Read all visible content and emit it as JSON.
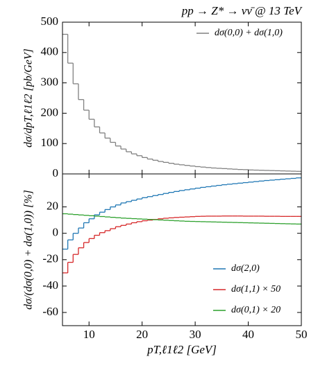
{
  "chart_data": [
    {
      "type": "histogram",
      "title": "pp → Z* → νν̄ @ 13 TeV",
      "ylabel": "dσ/dpT,ℓ1ℓ2 [pb/GeV]",
      "legend": "upper right",
      "xlim": [
        5,
        50
      ],
      "xticks": [
        10,
        20,
        30,
        40,
        50
      ],
      "ylim": [
        0,
        500
      ],
      "yticks": [
        0,
        100,
        200,
        300,
        400,
        500
      ],
      "bins": [
        5,
        6,
        7,
        8,
        9,
        10,
        11,
        12,
        13,
        14,
        15,
        16,
        17,
        18,
        19,
        20,
        21,
        22,
        23,
        24,
        25,
        26,
        27,
        28,
        29,
        30,
        31,
        32,
        33,
        34,
        35,
        36,
        37,
        38,
        39,
        40,
        41,
        42,
        43,
        44,
        45,
        46,
        47,
        48,
        49,
        50
      ],
      "series": [
        {
          "name": "dσ(0,0) + dσ(1,0)",
          "color": "#808080",
          "values": [
            460,
            365,
            297,
            245,
            210,
            180,
            155,
            135,
            118,
            104,
            92,
            82,
            73,
            66,
            60,
            54,
            49,
            45,
            41,
            38,
            35,
            32,
            30,
            28,
            26,
            24,
            22.5,
            21,
            19.5,
            18.5,
            17.5,
            16.5,
            15.5,
            14.5,
            14,
            13,
            12.5,
            12,
            11.5,
            11,
            10.5,
            10,
            9.5,
            9,
            8.5
          ]
        }
      ]
    },
    {
      "type": "histogram",
      "xlabel": "pT,ℓ1ℓ2 [GeV]",
      "ylabel": "dσ/(dσ(0,0) + dσ(1,0)) [%]",
      "legend": "lower right",
      "xlim": [
        5,
        50
      ],
      "xticks": [
        10,
        20,
        30,
        40,
        50
      ],
      "ylim": [
        -70,
        45
      ],
      "yticks": [
        -60,
        -40,
        -20,
        0,
        20
      ],
      "bins": [
        5,
        6,
        7,
        8,
        9,
        10,
        11,
        12,
        13,
        14,
        15,
        16,
        17,
        18,
        19,
        20,
        21,
        22,
        23,
        24,
        25,
        26,
        27,
        28,
        29,
        30,
        31,
        32,
        33,
        34,
        35,
        36,
        37,
        38,
        39,
        40,
        41,
        42,
        43,
        44,
        45,
        46,
        47,
        48,
        49,
        50
      ],
      "series": [
        {
          "name": "dσ(2,0)",
          "color": "#1f77b4",
          "values": [
            -12,
            -5,
            0,
            4,
            8,
            11,
            14,
            16,
            18,
            20,
            21.5,
            23,
            24,
            25,
            26,
            27,
            27.8,
            28.6,
            29.4,
            30.2,
            31,
            31.7,
            32.4,
            33,
            33.6,
            34.2,
            34.8,
            35.3,
            35.8,
            36.3,
            36.8,
            37.2,
            37.6,
            38,
            38.4,
            38.8,
            39.2,
            39.6,
            40,
            40.3,
            40.6,
            41,
            41.3,
            41.6,
            42
          ]
        },
        {
          "name": "dσ(1,1) × 50",
          "color": "#d62728",
          "values": [
            -30,
            -22,
            -16,
            -11,
            -7,
            -4,
            -1.5,
            0.5,
            2,
            3.5,
            5,
            6,
            7,
            8,
            8.8,
            9.5,
            10,
            10.5,
            11,
            11.4,
            11.7,
            12,
            12.2,
            12.4,
            12.6,
            12.8,
            12.9,
            13,
            13,
            13,
            13.1,
            13.1,
            13.1,
            13.1,
            13,
            13,
            13,
            13,
            12.9,
            12.9,
            12.9,
            12.8,
            12.8,
            12.8,
            12.8
          ]
        },
        {
          "name": "dσ(0,1) × 20",
          "color": "#2ca02c",
          "values": [
            14.8,
            14.5,
            14.2,
            13.9,
            13.6,
            13.3,
            13.0,
            12.7,
            12.4,
            12.1,
            11.8,
            11.5,
            11.3,
            11.1,
            10.9,
            10.7,
            10.5,
            10.3,
            10.1,
            9.9,
            9.7,
            9.5,
            9.3,
            9.1,
            9.0,
            8.9,
            8.8,
            8.7,
            8.6,
            8.5,
            8.4,
            8.3,
            8.2,
            8.1,
            8.0,
            7.9,
            7.8,
            7.7,
            7.6,
            7.5,
            7.4,
            7.3,
            7.2,
            7.1,
            7.0
          ]
        }
      ]
    }
  ]
}
